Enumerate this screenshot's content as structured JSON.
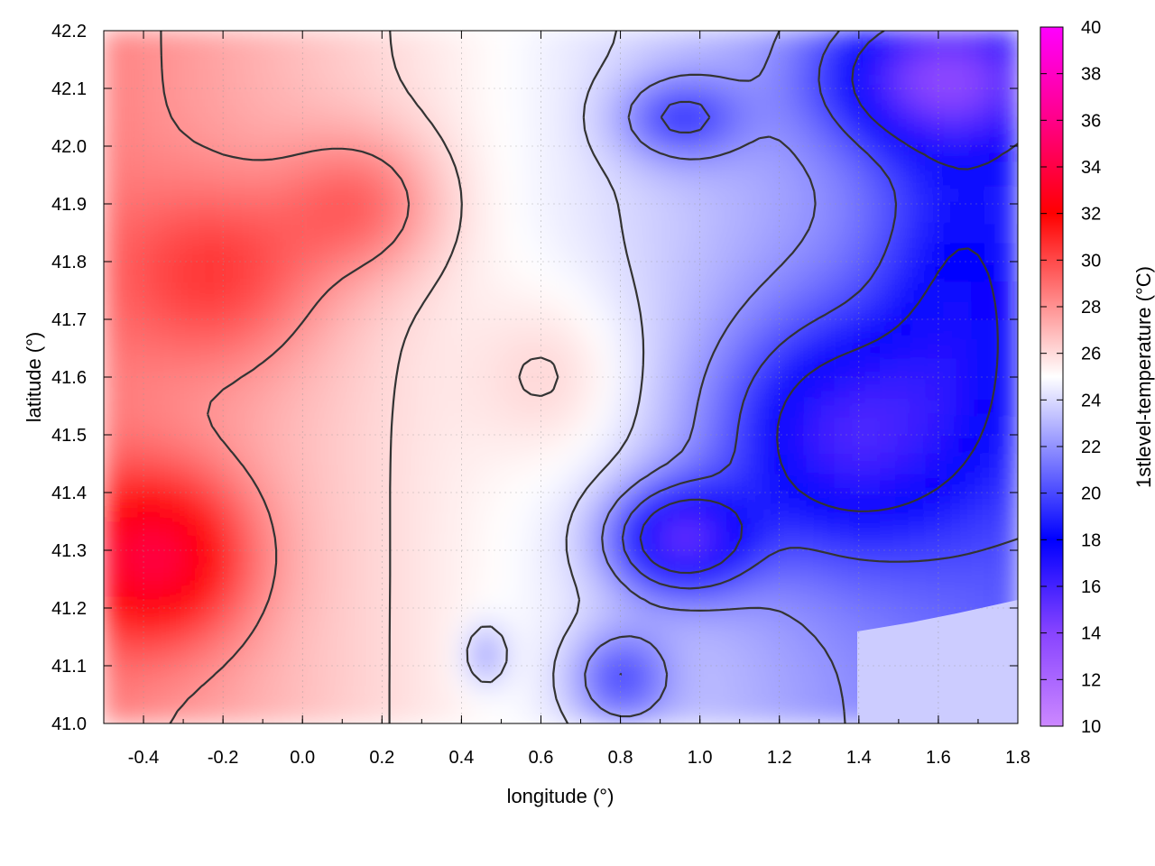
{
  "chart_data": {
    "type": "heatmap",
    "xlabel": "longitude (°)",
    "ylabel": "latitude (°)",
    "colorbar_label": "1stlevel-temperature (°C)",
    "xlim": [
      -0.5,
      1.8
    ],
    "ylim": [
      41.0,
      42.2
    ],
    "clim": [
      10,
      40
    ],
    "x_ticks": [
      -0.4,
      -0.2,
      0.0,
      0.2,
      0.4,
      0.6,
      0.8,
      1.0,
      1.2,
      1.4,
      1.6,
      1.8
    ],
    "x_tick_labels": [
      "-0.4",
      "-0.2",
      "0.0",
      "0.2",
      "0.4",
      "0.6",
      "0.8",
      "1.0",
      "1.2",
      "1.4",
      "1.6",
      "1.8"
    ],
    "y_ticks": [
      41.0,
      41.1,
      41.2,
      41.3,
      41.4,
      41.5,
      41.6,
      41.7,
      41.8,
      41.9,
      42.0,
      42.1,
      42.2
    ],
    "y_tick_labels": [
      "41.0",
      "41.1",
      "41.2",
      "41.3",
      "41.4",
      "41.5",
      "41.6",
      "41.7",
      "41.8",
      "41.9",
      "42.0",
      "42.1",
      "42.2"
    ],
    "colorbar_ticks": [
      10,
      12,
      14,
      16,
      18,
      20,
      22,
      24,
      26,
      28,
      30,
      32,
      34,
      36,
      38,
      40
    ],
    "colorbar_tick_labels": [
      "10",
      "12",
      "14",
      "16",
      "18",
      "20",
      "22",
      "24",
      "26",
      "28",
      "30",
      "32",
      "34",
      "36",
      "38",
      "40"
    ],
    "colormap": [
      {
        "value": 10,
        "color": "#cc88ff"
      },
      {
        "value": 14,
        "color": "#8844ff"
      },
      {
        "value": 18,
        "color": "#0000ff"
      },
      {
        "value": 25,
        "color": "#ffffff"
      },
      {
        "value": 32,
        "color": "#ff0000"
      },
      {
        "value": 36,
        "color": "#ff0088"
      },
      {
        "value": 40,
        "color": "#ff00ff"
      }
    ],
    "contour_color": "#333333",
    "grid": true,
    "missing_value_color": "#ccccff"
  }
}
